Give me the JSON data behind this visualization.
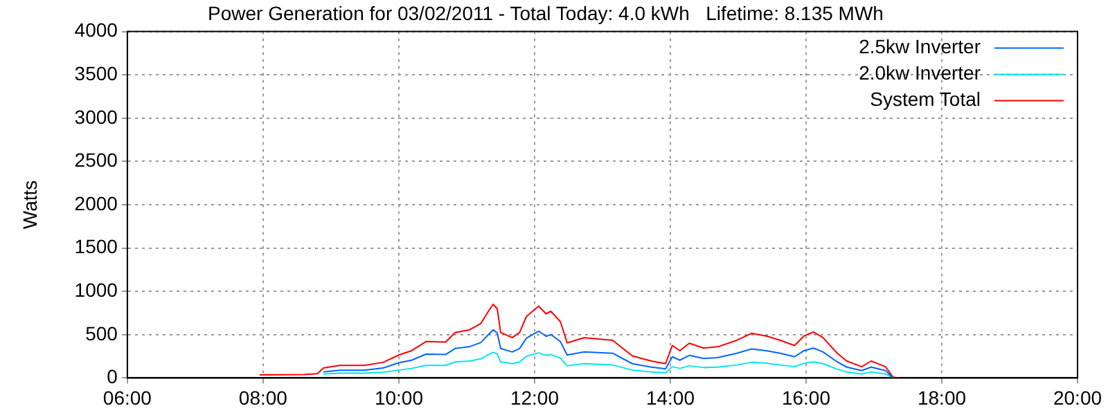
{
  "chart_data": {
    "type": "line",
    "title": "Power Generation for 03/02/2011 - Total Today: 4.0 kWh   Lifetime: 8.135 MWh",
    "ylabel": "Watts",
    "x": [
      7.95,
      8.6,
      8.8,
      8.89,
      9.13,
      9.49,
      9.77,
      10.0,
      10.19,
      10.4,
      10.69,
      10.83,
      11.04,
      11.21,
      11.32,
      11.39,
      11.45,
      11.5,
      11.67,
      11.78,
      11.88,
      12.06,
      12.17,
      12.24,
      12.38,
      12.48,
      12.73,
      13.15,
      13.44,
      13.72,
      13.93,
      14.03,
      14.14,
      14.28,
      14.49,
      14.7,
      14.98,
      15.2,
      15.41,
      15.62,
      15.83,
      15.97,
      16.11,
      16.25,
      16.46,
      16.6,
      16.82,
      16.96,
      17.17,
      17.28,
      17.38
    ],
    "series": [
      {
        "name": "2.5kw Inverter",
        "color": "#0066ff",
        "values": [
          null,
          null,
          null,
          70,
          90,
          90,
          115,
          175,
          205,
          275,
          270,
          340,
          360,
          410,
          500,
          555,
          520,
          340,
          300,
          340,
          460,
          540,
          480,
          500,
          420,
          265,
          300,
          285,
          165,
          125,
          105,
          245,
          205,
          260,
          225,
          235,
          285,
          335,
          315,
          285,
          245,
          315,
          345,
          300,
          185,
          125,
          85,
          125,
          85,
          5,
          null
        ]
      },
      {
        "name": "2.0kw Inverter",
        "color": "#00e5ee",
        "values": [
          null,
          null,
          null,
          45,
          55,
          55,
          65,
          90,
          110,
          145,
          145,
          185,
          195,
          220,
          270,
          295,
          280,
          185,
          165,
          185,
          250,
          290,
          260,
          270,
          230,
          140,
          165,
          150,
          90,
          70,
          60,
          130,
          110,
          140,
          120,
          125,
          150,
          180,
          170,
          150,
          130,
          170,
          185,
          165,
          100,
          70,
          45,
          70,
          45,
          5,
          null
        ]
      },
      {
        "name": "System Total",
        "color": "#ff0000",
        "values": [
          35,
          40,
          50,
          115,
          145,
          145,
          180,
          265,
          315,
          420,
          415,
          525,
          555,
          630,
          770,
          850,
          800,
          525,
          465,
          525,
          710,
          830,
          740,
          770,
          650,
          405,
          465,
          435,
          255,
          195,
          165,
          375,
          315,
          400,
          345,
          360,
          435,
          515,
          485,
          435,
          375,
          485,
          530,
          465,
          285,
          195,
          130,
          195,
          130,
          10,
          0
        ]
      }
    ],
    "xlim": [
      6,
      20
    ],
    "xticks": [
      {
        "value": 6,
        "label": "06:00"
      },
      {
        "value": 8,
        "label": "08:00"
      },
      {
        "value": 10,
        "label": "10:00"
      },
      {
        "value": 12,
        "label": "12:00"
      },
      {
        "value": 14,
        "label": "14:00"
      },
      {
        "value": 16,
        "label": "16:00"
      },
      {
        "value": 18,
        "label": "18:00"
      },
      {
        "value": 20,
        "label": "20:00"
      }
    ],
    "ylim": [
      0,
      4000
    ],
    "yticks": [
      0,
      500,
      1000,
      1500,
      2000,
      2500,
      3000,
      3500,
      4000
    ],
    "grid": true,
    "legend": "top right",
    "marker": "none",
    "line_style": "solid"
  }
}
